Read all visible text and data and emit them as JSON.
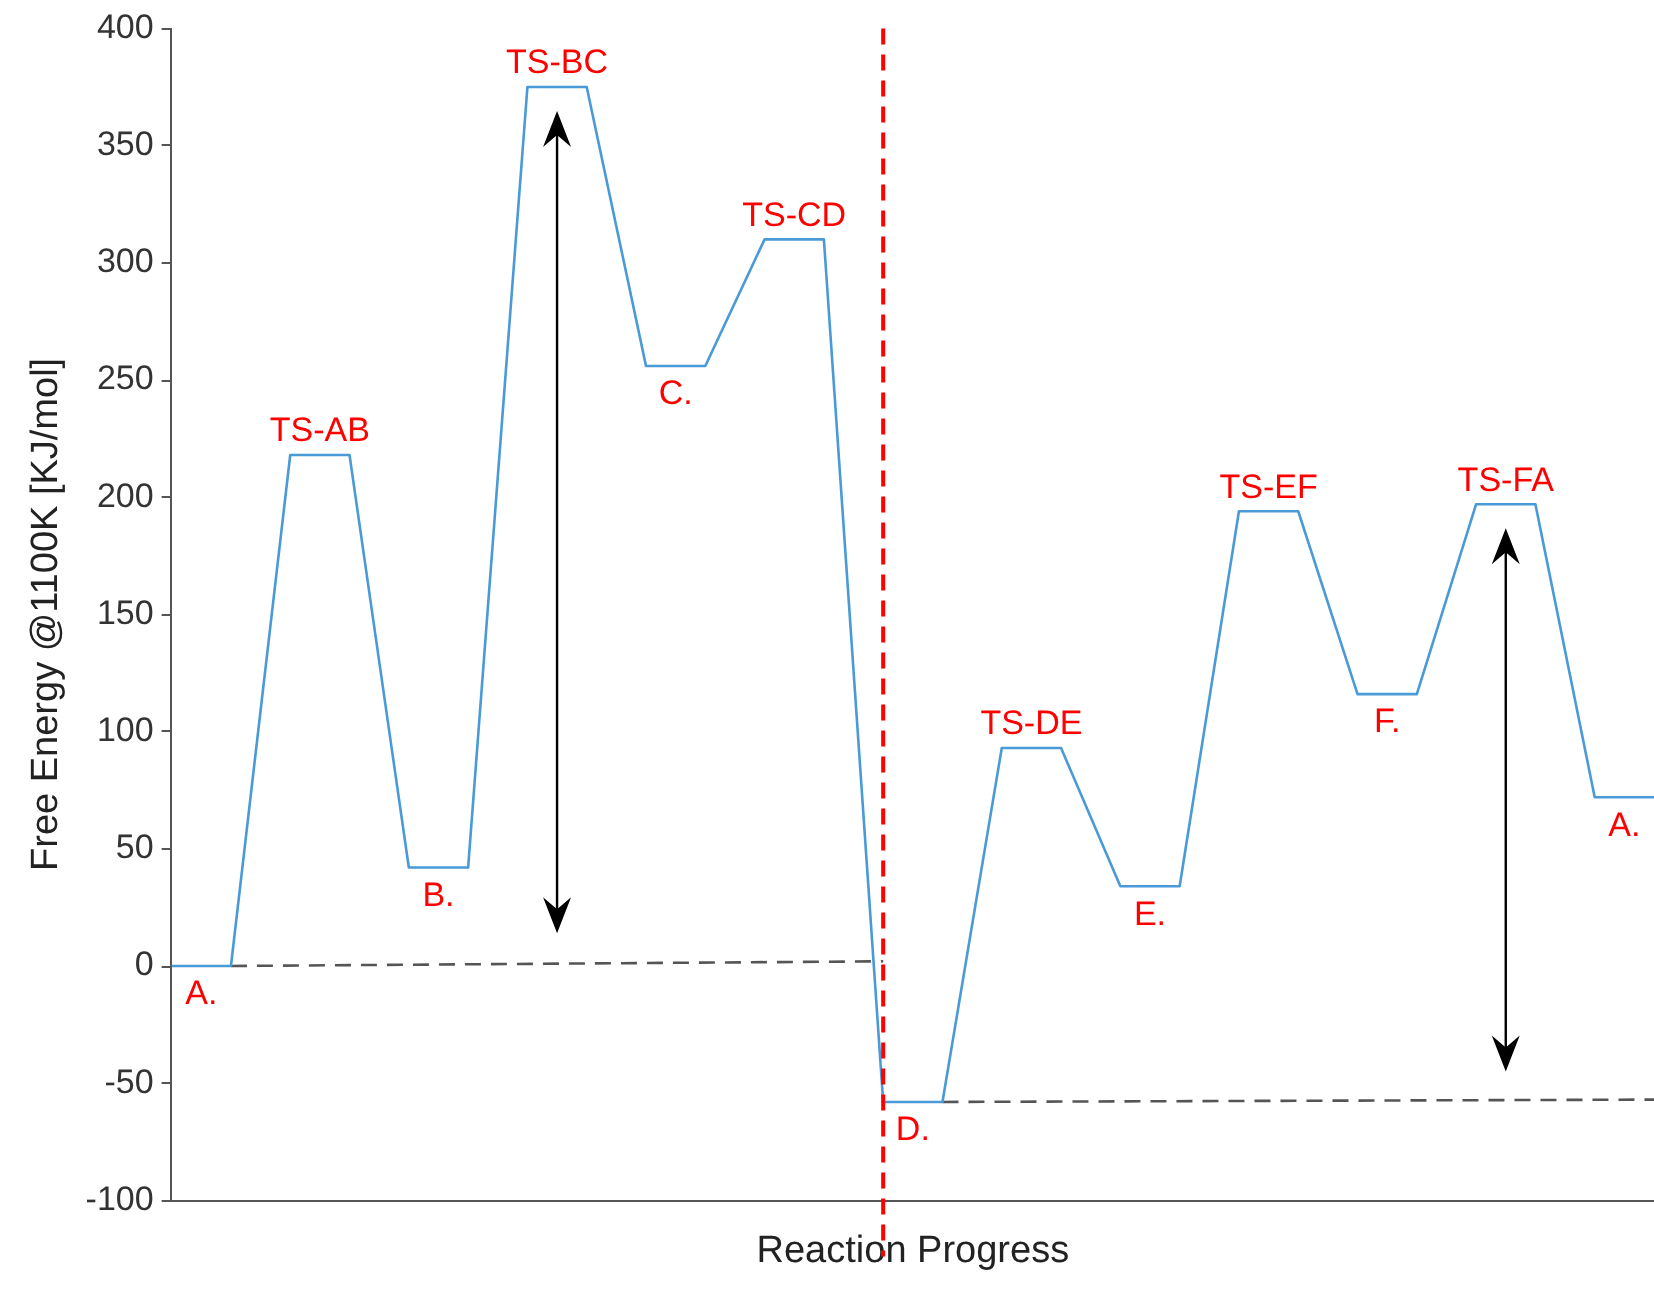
{
  "chart_data": {
    "type": "line",
    "xlabel": "Reaction Progress",
    "ylabel": "Free Energy @1100K [KJ/mol]",
    "ylim": [
      -100,
      400
    ],
    "yticks": [
      -100,
      -50,
      0,
      50,
      100,
      150,
      200,
      250,
      300,
      350,
      400
    ],
    "tick_labels": "y",
    "grid": false,
    "legend": false,
    "marker": "none",
    "categories": [
      null,
      null,
      null,
      null,
      null,
      null,
      null,
      null,
      null,
      null,
      null,
      null,
      null,
      null,
      null,
      null,
      null,
      null,
      null,
      null,
      null,
      null,
      null,
      null,
      null,
      null
    ],
    "series": [
      {
        "color": "#4a9ad8",
        "values": [
          0,
          0,
          218,
          218,
          42,
          42,
          375,
          375,
          256,
          256,
          310,
          310,
          -58,
          -58,
          93,
          93,
          34,
          34,
          194,
          194,
          116,
          116,
          197,
          197,
          72,
          72
        ]
      },
      {
        "color": "#555555",
        "line_style": "dashed",
        "values": [
          null,
          0,
          null,
          null,
          null,
          null,
          null,
          null,
          null,
          null,
          null,
          null,
          2,
          null,
          null,
          null,
          null,
          null,
          null,
          null,
          null,
          null,
          null,
          null,
          null,
          null
        ]
      },
      {
        "color": "#555555",
        "line_style": "dashed",
        "values": [
          null,
          null,
          null,
          null,
          null,
          null,
          null,
          null,
          null,
          null,
          null,
          null,
          null,
          -58,
          null,
          null,
          null,
          null,
          null,
          null,
          null,
          null,
          null,
          null,
          null,
          -57
        ]
      }
    ],
    "annotations": [
      {
        "text": "A.",
        "y": 0
      },
      {
        "text": "TS-AB",
        "y": 218
      },
      {
        "text": "B.",
        "y": 42
      },
      {
        "text": "TS-BC",
        "y": 375
      },
      {
        "text": "C.",
        "y": 256
      },
      {
        "text": "TS-CD",
        "y": 310
      },
      {
        "text": "D.",
        "y": -58
      },
      {
        "text": "TS-DE",
        "y": 93
      },
      {
        "text": "E.",
        "y": 34
      },
      {
        "text": "TS-EF",
        "y": 194
      },
      {
        "text": "F.",
        "y": 116
      },
      {
        "text": "TS-FA",
        "y": 197
      },
      {
        "text": "A.",
        "y": 72
      }
    ]
  }
}
